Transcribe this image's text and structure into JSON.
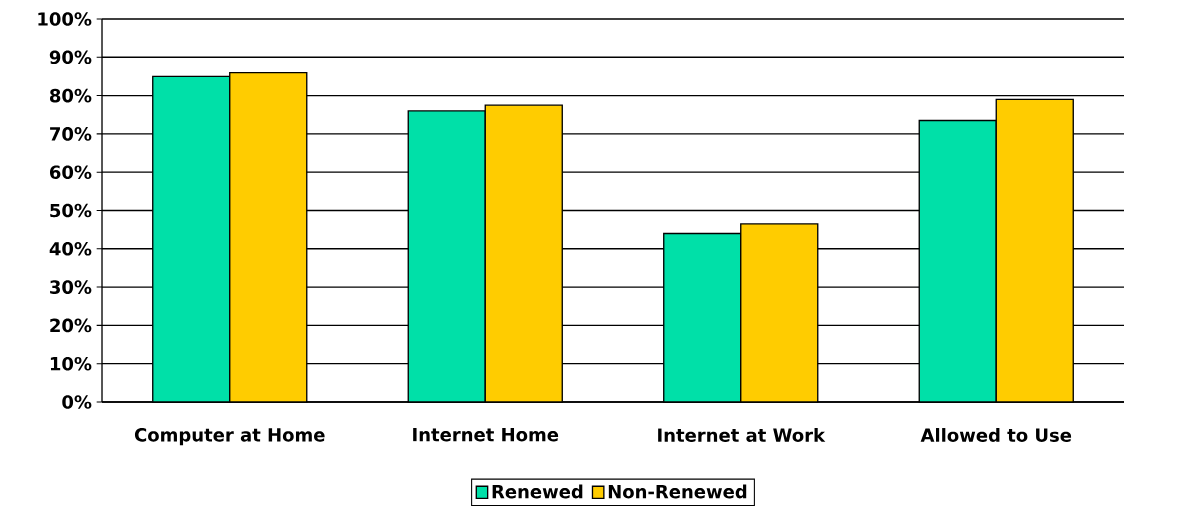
{
  "chart_data": {
    "type": "bar",
    "categories": [
      "Computer at Home",
      "Internet Home",
      "Internet at Work",
      "Allowed to Use"
    ],
    "series": [
      {
        "name": "Renewed",
        "color": "#00e0a8",
        "values": [
          85,
          76,
          44,
          73.5
        ]
      },
      {
        "name": "Non-Renewed",
        "color": "#ffcc00",
        "values": [
          86,
          77.5,
          46.5,
          79
        ]
      }
    ],
    "ylim": [
      0,
      100
    ],
    "yticks": [
      {
        "value": 0,
        "label": "0%"
      },
      {
        "value": 10,
        "label": "10%"
      },
      {
        "value": 20,
        "label": "20%"
      },
      {
        "value": 30,
        "label": "30%"
      },
      {
        "value": 40,
        "label": "40%"
      },
      {
        "value": 50,
        "label": "50%"
      },
      {
        "value": 60,
        "label": "60%"
      },
      {
        "value": 70,
        "label": "70%"
      },
      {
        "value": 80,
        "label": "80%"
      },
      {
        "value": 90,
        "label": "90%"
      },
      {
        "value": 100,
        "label": "100%"
      }
    ],
    "grid": "y",
    "legend": "bottom"
  }
}
